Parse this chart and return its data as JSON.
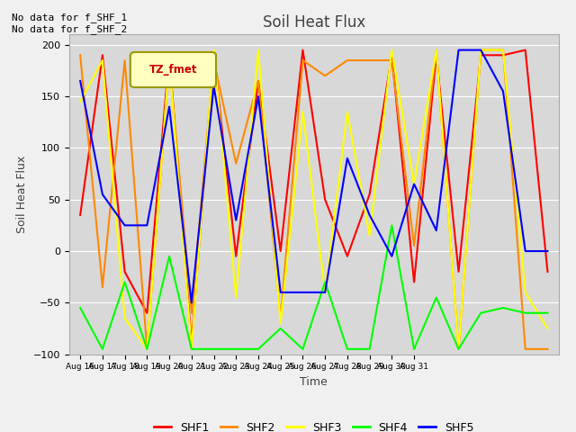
{
  "title": "Soil Heat Flux",
  "xlabel": "Time",
  "ylabel": "Soil Heat Flux",
  "ylim": [
    -100,
    210
  ],
  "yticks": [
    -100,
    -50,
    0,
    50,
    100,
    150,
    200
  ],
  "annotation_text": "No data for f_SHF_1\nNo data for f_SHF_2",
  "legend_label": "TZ_fmet",
  "legend_colors": {
    "SHF1": "#ff0000",
    "SHF2": "#ff8800",
    "SHF3": "#ffff00",
    "SHF4": "#00ff00",
    "SHF5": "#0000ff"
  },
  "bg_color": "#d8d8d8",
  "fig_bg_color": "#f0f0f0",
  "series": {
    "SHF1": {
      "color": "#ff0000",
      "x": [
        0,
        1,
        2,
        3,
        4,
        5,
        6,
        7,
        8,
        9,
        10,
        11,
        12,
        13,
        14,
        15,
        16,
        17,
        18,
        19,
        20,
        21
      ],
      "y": [
        35,
        190,
        -20,
        -60,
        190,
        -90,
        190,
        -5,
        165,
        0,
        195,
        50,
        -5,
        55,
        190,
        -30,
        190,
        -20,
        190,
        190,
        195,
        -20
      ]
    },
    "SHF2": {
      "color": "#ff8800",
      "x": [
        0,
        1,
        2,
        3,
        4,
        5,
        6,
        7,
        8,
        9,
        10,
        11,
        12,
        13,
        14,
        15,
        16,
        17,
        18,
        19,
        20,
        21
      ],
      "y": [
        190,
        -35,
        185,
        -95,
        185,
        -60,
        185,
        85,
        165,
        -65,
        185,
        170,
        185,
        185,
        185,
        5,
        195,
        -95,
        195,
        195,
        -95,
        -95
      ]
    },
    "SHF3": {
      "color": "#ffff00",
      "x": [
        0,
        1,
        2,
        3,
        4,
        5,
        6,
        7,
        8,
        9,
        10,
        11,
        12,
        13,
        14,
        15,
        16,
        17,
        18,
        19,
        20,
        21
      ],
      "y": [
        145,
        185,
        -65,
        -95,
        185,
        -95,
        195,
        -45,
        195,
        -70,
        135,
        -40,
        135,
        15,
        195,
        65,
        195,
        -95,
        195,
        195,
        -40,
        -75
      ]
    },
    "SHF4": {
      "color": "#00ff00",
      "x": [
        0,
        1,
        2,
        3,
        4,
        5,
        6,
        7,
        8,
        9,
        10,
        11,
        12,
        13,
        14,
        15,
        16,
        17,
        18,
        19,
        20,
        21
      ],
      "y": [
        -55,
        -95,
        -30,
        -95,
        -5,
        -95,
        -95,
        -95,
        -95,
        -75,
        -95,
        -30,
        -95,
        -95,
        25,
        -95,
        -45,
        -95,
        -60,
        -55,
        -60,
        -60
      ]
    },
    "SHF5": {
      "color": "#0000ff",
      "x": [
        0,
        1,
        2,
        3,
        4,
        5,
        6,
        7,
        8,
        9,
        10,
        11,
        12,
        13,
        14,
        15,
        16,
        17,
        18,
        19,
        20,
        21
      ],
      "y": [
        165,
        55,
        25,
        25,
        140,
        -50,
        160,
        30,
        150,
        -40,
        -40,
        -40,
        90,
        35,
        -5,
        65,
        20,
        195,
        195,
        155,
        0,
        0
      ]
    }
  },
  "x_tick_labels": [
    "Aug 16",
    "Aug 17",
    "Aug 18",
    "Aug 19",
    "Aug 20",
    "Aug 21",
    "Aug 22",
    "Aug 23",
    "Aug 24",
    "Aug 25",
    "Aug 26",
    "Aug 27",
    "Aug 28",
    "Aug 29",
    "Aug 30",
    "Aug 31"
  ],
  "x_tick_positions": [
    0,
    1,
    2,
    3,
    4,
    5,
    6,
    7,
    8,
    9,
    10,
    11,
    12,
    13,
    14,
    15
  ]
}
